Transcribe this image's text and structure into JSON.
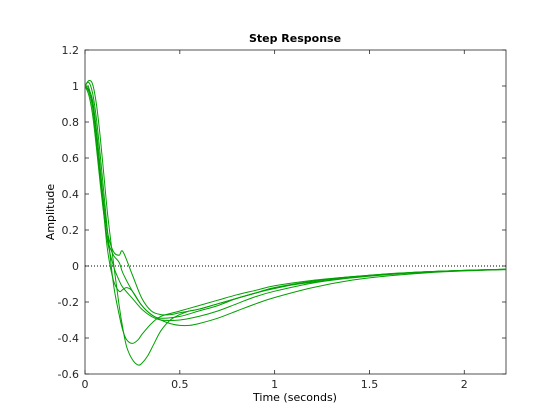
{
  "chart_data": {
    "type": "line",
    "title": "Step Response",
    "xlabel": "Time (seconds)",
    "ylabel": "Amplitude",
    "xlim": [
      0,
      2.22
    ],
    "ylim": [
      -0.6,
      1.2
    ],
    "xticks": [
      0,
      0.5,
      1,
      1.5,
      2
    ],
    "xtick_labels": [
      "0",
      "0.5",
      "1",
      "1.5",
      "2"
    ],
    "yticks": [
      -0.6,
      -0.4,
      -0.2,
      0,
      0.2,
      0.4,
      0.6,
      0.8,
      1,
      1.2
    ],
    "ytick_labels": [
      "-0.6",
      "-0.4",
      "-0.2",
      "0",
      "0.2",
      "0.4",
      "0.6",
      "0.8",
      "1",
      "1.2"
    ],
    "grid": false,
    "reference_line": {
      "y": 0,
      "style": "dotted",
      "color": "#000000"
    },
    "series_color": "#00a000",
    "series": [
      {
        "x": [
          0,
          0.02,
          0.04,
          0.06,
          0.08,
          0.1,
          0.12,
          0.15,
          0.18,
          0.2,
          0.22,
          0.25,
          0.28,
          0.3,
          0.33,
          0.36,
          0.4,
          0.45,
          0.5,
          0.55,
          0.6,
          0.7,
          0.8,
          0.9,
          1.0,
          1.2,
          1.4,
          1.6,
          1.8,
          2.0,
          2.22
        ],
        "y": [
          1.0,
          1.03,
          1.01,
          0.9,
          0.72,
          0.5,
          0.28,
          0.02,
          -0.22,
          -0.35,
          -0.45,
          -0.52,
          -0.55,
          -0.54,
          -0.5,
          -0.44,
          -0.36,
          -0.3,
          -0.27,
          -0.25,
          -0.24,
          -0.21,
          -0.18,
          -0.15,
          -0.12,
          -0.09,
          -0.065,
          -0.045,
          -0.032,
          -0.024,
          -0.018
        ]
      },
      {
        "x": [
          0,
          0.02,
          0.04,
          0.06,
          0.08,
          0.1,
          0.12,
          0.15,
          0.18,
          0.2,
          0.22,
          0.25,
          0.28,
          0.3,
          0.35,
          0.4,
          0.5,
          0.6,
          0.7,
          0.8,
          0.9,
          1.0,
          1.2,
          1.4,
          1.6,
          1.8,
          2.0,
          2.22
        ],
        "y": [
          1.0,
          1.02,
          0.96,
          0.82,
          0.62,
          0.4,
          0.18,
          -0.1,
          -0.27,
          -0.36,
          -0.41,
          -0.43,
          -0.41,
          -0.38,
          -0.32,
          -0.28,
          -0.25,
          -0.22,
          -0.19,
          -0.16,
          -0.135,
          -0.11,
          -0.08,
          -0.06,
          -0.043,
          -0.032,
          -0.024,
          -0.018
        ]
      },
      {
        "x": [
          0,
          0.02,
          0.04,
          0.06,
          0.08,
          0.1,
          0.12,
          0.15,
          0.18,
          0.2,
          0.22,
          0.25,
          0.3,
          0.35,
          0.4,
          0.5,
          0.6,
          0.7,
          0.8,
          0.9,
          1.0,
          1.2,
          1.4,
          1.6,
          1.8,
          2.0,
          2.22
        ],
        "y": [
          1.0,
          0.99,
          0.9,
          0.72,
          0.5,
          0.28,
          0.08,
          -0.08,
          -0.14,
          -0.13,
          -0.12,
          -0.14,
          -0.22,
          -0.27,
          -0.29,
          -0.28,
          -0.25,
          -0.22,
          -0.18,
          -0.15,
          -0.12,
          -0.085,
          -0.062,
          -0.045,
          -0.033,
          -0.025,
          -0.019
        ]
      },
      {
        "x": [
          0,
          0.02,
          0.04,
          0.06,
          0.08,
          0.1,
          0.12,
          0.15,
          0.18,
          0.2,
          0.25,
          0.3,
          0.35,
          0.4,
          0.5,
          0.6,
          0.7,
          0.8,
          0.9,
          1.0,
          1.2,
          1.4,
          1.6,
          1.8,
          2.0,
          2.22
        ],
        "y": [
          1.0,
          0.97,
          0.88,
          0.7,
          0.5,
          0.3,
          0.13,
          0.0,
          -0.08,
          -0.12,
          -0.18,
          -0.24,
          -0.28,
          -0.3,
          -0.3,
          -0.28,
          -0.25,
          -0.21,
          -0.17,
          -0.14,
          -0.095,
          -0.067,
          -0.048,
          -0.035,
          -0.026,
          -0.019
        ]
      },
      {
        "x": [
          0,
          0.02,
          0.04,
          0.06,
          0.08,
          0.1,
          0.12,
          0.15,
          0.18,
          0.2,
          0.25,
          0.3,
          0.35,
          0.4,
          0.45,
          0.5,
          0.55,
          0.6,
          0.7,
          0.8,
          0.9,
          1.0,
          1.2,
          1.4,
          1.6,
          1.8,
          2.0,
          2.22
        ],
        "y": [
          1.0,
          0.95,
          0.84,
          0.66,
          0.46,
          0.28,
          0.14,
          0.06,
          0.02,
          -0.04,
          -0.14,
          -0.22,
          -0.27,
          -0.3,
          -0.32,
          -0.33,
          -0.33,
          -0.32,
          -0.29,
          -0.25,
          -0.21,
          -0.175,
          -0.12,
          -0.08,
          -0.055,
          -0.038,
          -0.027,
          -0.02
        ]
      },
      {
        "x": [
          0,
          0.02,
          0.04,
          0.06,
          0.08,
          0.1,
          0.12,
          0.15,
          0.18,
          0.2,
          0.25,
          0.3,
          0.35,
          0.4,
          0.45,
          0.5,
          0.6,
          0.7,
          0.8,
          0.9,
          1.0,
          1.2,
          1.4,
          1.6,
          1.8,
          2.0,
          2.22
        ],
        "y": [
          1.0,
          0.98,
          0.92,
          0.76,
          0.55,
          0.34,
          0.18,
          0.08,
          0.06,
          0.08,
          -0.05,
          -0.18,
          -0.25,
          -0.27,
          -0.27,
          -0.26,
          -0.24,
          -0.21,
          -0.18,
          -0.15,
          -0.125,
          -0.085,
          -0.06,
          -0.044,
          -0.032,
          -0.024,
          -0.018
        ]
      }
    ]
  }
}
